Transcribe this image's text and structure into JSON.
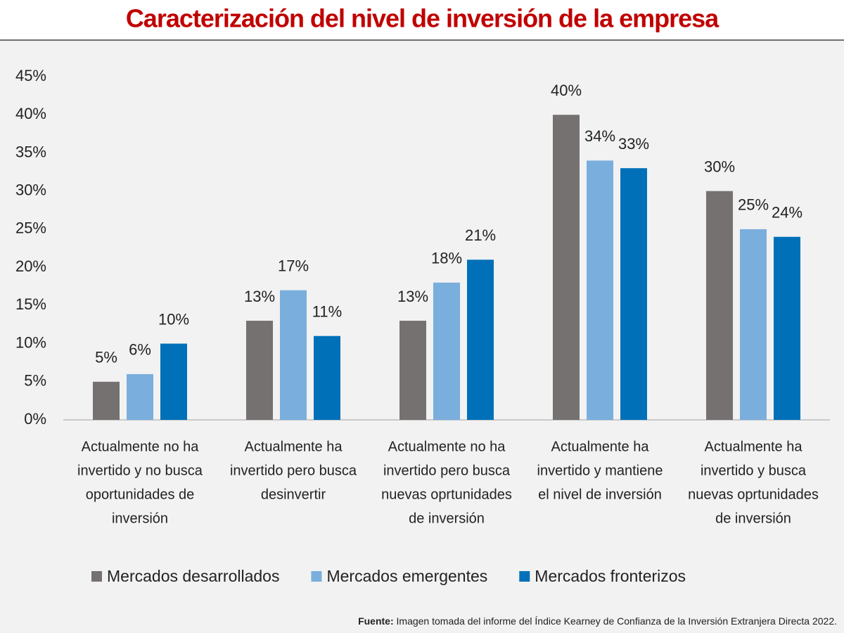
{
  "chart_data": {
    "type": "bar",
    "title": "Caracterización del nivel de inversión de la empresa",
    "categories": [
      [
        "Actualmente no ha",
        "invertido y no busca",
        "oportunidades de",
        "inversión"
      ],
      [
        "Actualmente ha",
        "invertido pero busca",
        "desinvertir"
      ],
      [
        "Actualmente no ha",
        "invertido pero busca",
        "nuevas oprtunidades",
        "de inversión"
      ],
      [
        "Actualmente ha",
        "invertido y mantiene",
        "el nivel de inversión"
      ],
      [
        "Actualmente ha",
        "invertido y busca",
        "nuevas oprtunidades",
        "de inversión"
      ]
    ],
    "series": [
      {
        "name": "Mercados desarrollados",
        "color": "#767171",
        "values": [
          5,
          13,
          13,
          40,
          30
        ],
        "value_labels": [
          "5%",
          "13%",
          "13%",
          "40%",
          "30%"
        ]
      },
      {
        "name": "Mercados emergentes",
        "color": "#7aaedd",
        "values": [
          6,
          17,
          18,
          34,
          25
        ],
        "value_labels": [
          "6%",
          "17%",
          "18%",
          "34%",
          "25%"
        ]
      },
      {
        "name": "Mercados fronterizos",
        "color": "#0070b8",
        "values": [
          10,
          11,
          21,
          33,
          24
        ],
        "value_labels": [
          "10%",
          "11%",
          "21%",
          "33%",
          "24%"
        ]
      }
    ],
    "ylim": [
      0,
      45
    ],
    "yticks": [
      {
        "value": 0,
        "label": "0%"
      },
      {
        "value": 5,
        "label": "5%"
      },
      {
        "value": 10,
        "label": "10%"
      },
      {
        "value": 15,
        "label": "15%"
      },
      {
        "value": 20,
        "label": "20%"
      },
      {
        "value": 25,
        "label": "25%"
      },
      {
        "value": 30,
        "label": "30%"
      },
      {
        "value": 35,
        "label": "35%"
      },
      {
        "value": 40,
        "label": "40%"
      },
      {
        "value": 45,
        "label": "45%"
      }
    ],
    "grid": false,
    "legend": "bottom",
    "source_label": "Fuente:",
    "source": "Imagen tomada del informe del Índice Kearney de Confianza de la Inversión Extranjera Directa 2022."
  }
}
